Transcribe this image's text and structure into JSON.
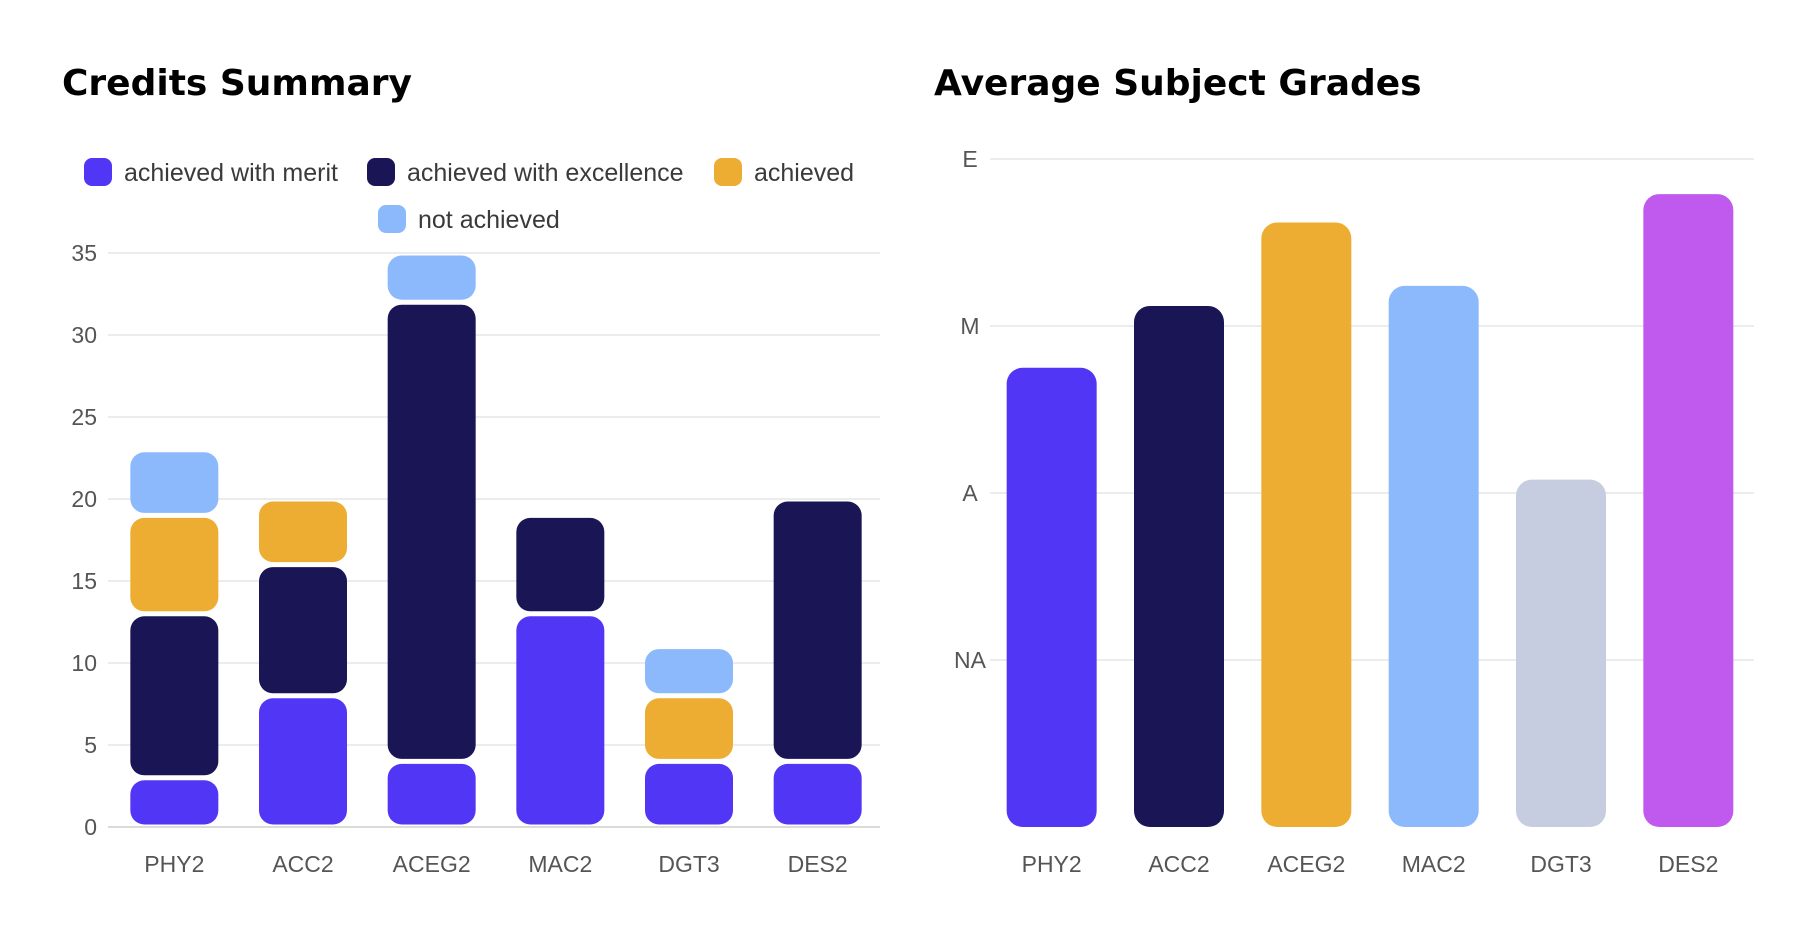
{
  "chart_data": [
    {
      "type": "bar",
      "stacked": true,
      "title": "Credits Summary",
      "categories": [
        "PHY2",
        "ACC2",
        "ACEG2",
        "MAC2",
        "DGT3",
        "DES2"
      ],
      "series": [
        {
          "name": "achieved with merit",
          "color": "#5236f6",
          "values": [
            3,
            8,
            4,
            13,
            4,
            4
          ]
        },
        {
          "name": "achieved with excellence",
          "color": "#1a1656",
          "values": [
            10,
            8,
            28,
            6,
            0,
            16
          ]
        },
        {
          "name": "achieved",
          "color": "#ecad32",
          "values": [
            6,
            4,
            0,
            0,
            4,
            0
          ]
        },
        {
          "name": "not achieved",
          "color": "#8bb9fb",
          "values": [
            4,
            0,
            3,
            0,
            3,
            0
          ]
        }
      ],
      "ylim": [
        0,
        35
      ],
      "yticks": [
        "0",
        "5",
        "10",
        "15",
        "20",
        "25",
        "30",
        "35"
      ],
      "grid": true,
      "legend": "top"
    },
    {
      "type": "bar",
      "title": "Average Subject Grades",
      "categories": [
        "PHY2",
        "ACC2",
        "ACEG2",
        "MAC2",
        "DGT3",
        "DES2"
      ],
      "values": [
        2.75,
        3.12,
        3.62,
        3.24,
        2.08,
        3.79
      ],
      "colors": [
        "#5236f6",
        "#1a1656",
        "#ecad32",
        "#8bb9fb",
        "#c7cde0",
        "#c05aee"
      ],
      "ylim": [
        0,
        4
      ],
      "yticks": [
        "NA",
        "A",
        "M",
        "E"
      ],
      "ytick_values": [
        1,
        2,
        3,
        4
      ],
      "grid": true,
      "legend": "none"
    }
  ]
}
